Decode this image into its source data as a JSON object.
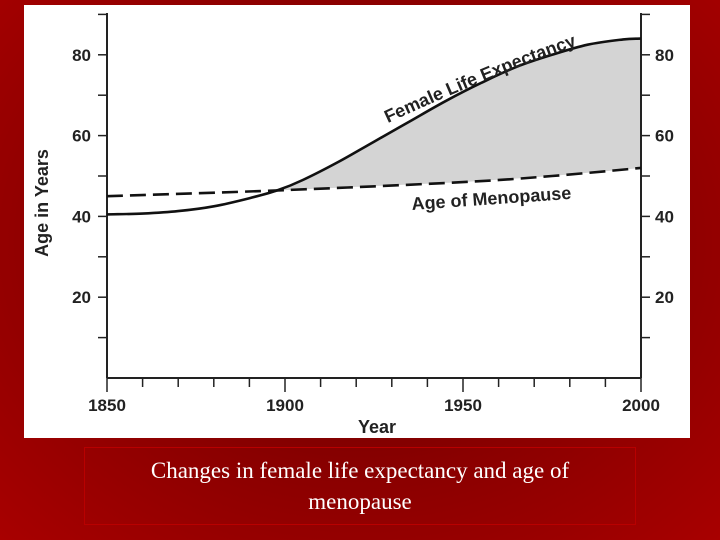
{
  "chart_data": {
    "type": "line",
    "title": "",
    "xlabel": "Year",
    "ylabel": "Age in Years",
    "xlim": [
      1850,
      2000
    ],
    "ylim": [
      0,
      90
    ],
    "x_ticks": [
      1850,
      1900,
      1950,
      2000
    ],
    "y_ticks_left": [
      20,
      40,
      60,
      80
    ],
    "y_ticks_right": [
      20,
      40,
      60,
      80
    ],
    "shaded_region": "between Female Life Expectancy and Age of Menopause after ~1898",
    "series": [
      {
        "name": "Female Life Expectancy",
        "style": "solid",
        "x": [
          1850,
          1860,
          1870,
          1880,
          1890,
          1898,
          1905,
          1915,
          1925,
          1935,
          1945,
          1955,
          1965,
          1975,
          1985,
          1995,
          2000
        ],
        "values": [
          40.5,
          40.7,
          41.3,
          42.5,
          44.5,
          46.5,
          49,
          53.5,
          58.5,
          63.5,
          68.5,
          73,
          77,
          80,
          82.5,
          83.8,
          84
        ]
      },
      {
        "name": "Age of Menopause",
        "style": "dashed",
        "x": [
          1850,
          1900,
          1950,
          1975,
          2000
        ],
        "values": [
          45,
          46.5,
          48.5,
          50,
          52
        ]
      }
    ]
  },
  "caption": "Changes in female life expectancy and age of menopause"
}
